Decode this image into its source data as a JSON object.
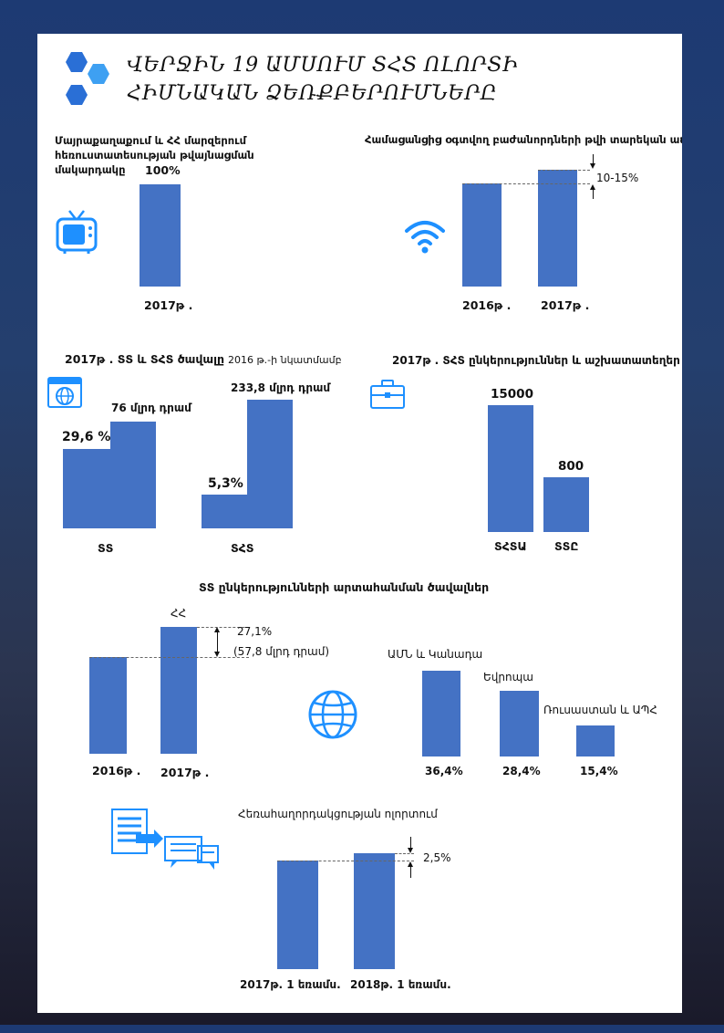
{
  "title": "ՎԵՐՋԻՆ 19 ԱՄՍՈՒՄ ՏՀՏ ՈԼՈՐՏԻ ՀԻՄՆԱԿԱՆ ՁԵՌՔԲԵՐՈՒՄՆԵՐԸ",
  "colors": {
    "bar": "#4472c4",
    "icon": "#1e90ff",
    "hex_dark": "#2a6fd6",
    "hex_light": "#3ea0f2"
  },
  "chart_data": [
    {
      "type": "bar",
      "title": "Մայրաքաղաքում և ՀՀ մարզերում հեռուստատեսության թվայնացման մակարդակը",
      "categories": [
        "2017թ ."
      ],
      "values": [
        100
      ],
      "value_labels": [
        "100%"
      ],
      "icon": "tv-icon"
    },
    {
      "type": "bar",
      "title": "Համացանցից օգտվող բաժանորդների թվի տարեկան աճը",
      "categories": [
        "2016թ .",
        "2017թ ."
      ],
      "values": [
        100,
        112.5
      ],
      "annotation": "10-15%",
      "icon": "wifi-icon"
    },
    {
      "type": "bar",
      "title_bold": "2017թ .  ՏՏ և ՏՀՏ ծավալը",
      "title_rest": "2016 թ.-ի նկատմամբ",
      "groups": [
        {
          "category": "ՏՏ",
          "series": [
            {
              "label": "29,6  %",
              "value": 29.6
            },
            {
              "label": "76 մլրդ դրամ",
              "value": 76
            }
          ]
        },
        {
          "category": "ՏՀՏ",
          "series": [
            {
              "label": "5,3%",
              "value": 5.3
            },
            {
              "label": "233,8 մլրդ դրամ",
              "value": 233.8
            }
          ]
        }
      ],
      "icon": "web-browser-icon"
    },
    {
      "type": "bar",
      "title": "2017թ .  ՏՀՏ ընկերություններ և աշխատատեղեր",
      "categories": [
        "ՏՀՏԱ",
        "ՏՏԸ"
      ],
      "values": [
        15000,
        800
      ],
      "value_labels": [
        "15000",
        "800"
      ],
      "icon": "briefcase-icon"
    },
    {
      "type": "bar",
      "title": "ՏՏ ընկերությունների արտահանման ծավալներ",
      "categories": [
        "2016թ .",
        "2017թ ."
      ],
      "values": [
        100,
        127.1
      ],
      "bar_top_label": "ՀՀ",
      "annotation_lines": [
        "27,1%",
        "(57,8 մլրդ դրամ)"
      ]
    },
    {
      "type": "bar",
      "categories": [
        "ԱՄՆ և Կանադա",
        "Եվրոպա",
        "Ռուսաստան և ԱՊՀ"
      ],
      "values": [
        36.4,
        28.4,
        15.4
      ],
      "value_labels": [
        "36,4%",
        "28,4%",
        "15,4%"
      ],
      "icon": "globe-icon"
    },
    {
      "type": "bar",
      "title": "Հեռահաղորդակցության ոլորտում",
      "categories": [
        "2017թ. 1 եռամս.",
        "2018թ. 1 եռամս."
      ],
      "values": [
        100,
        102.5
      ],
      "annotation": "2,5%",
      "icon": "document-chat-icon"
    }
  ]
}
